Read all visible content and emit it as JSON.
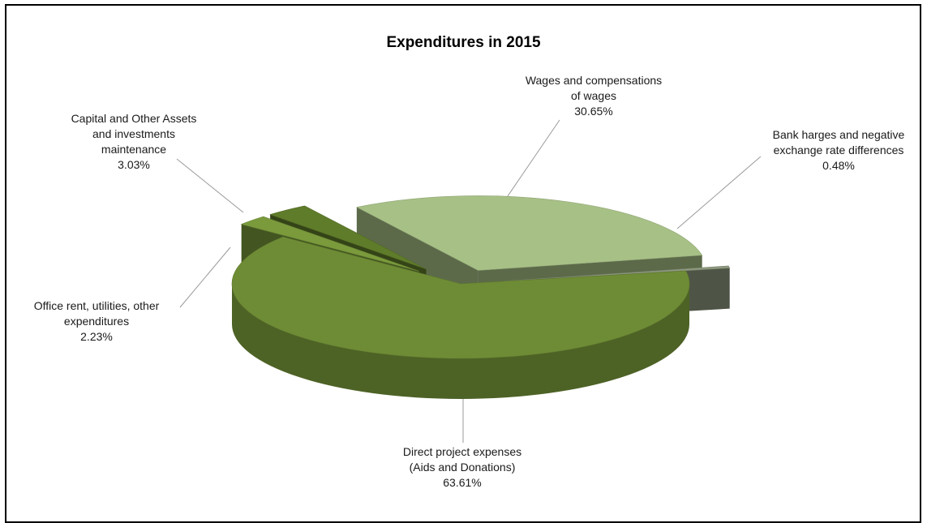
{
  "chart_data": {
    "type": "pie",
    "title": "Expenditures in 2015",
    "slices": [
      {
        "name_lines": [
          "Direct project expenses",
          "(Aids and Donations)"
        ],
        "value": 63.61,
        "value_label": "63.61%",
        "color": "#6e8c35"
      },
      {
        "name_lines": [
          "Office rent, utilities, other",
          "expenditures"
        ],
        "value": 2.23,
        "value_label": "2.23%",
        "color": "#7a9a3c"
      },
      {
        "name_lines": [
          "Capital and Other Assets",
          "and investments",
          "maintenance"
        ],
        "value": 3.03,
        "value_label": "3.03%",
        "color": "#5f7c2a"
      },
      {
        "name_lines": [
          "Wages and compensations",
          "of wages"
        ],
        "value": 30.65,
        "value_label": "30.65%",
        "color": "#a7c086"
      },
      {
        "name_lines": [
          "Bank harges and negative",
          "exchange rate differences"
        ],
        "value": 0.48,
        "value_label": "0.48%",
        "color": "#8f9a80"
      }
    ]
  }
}
